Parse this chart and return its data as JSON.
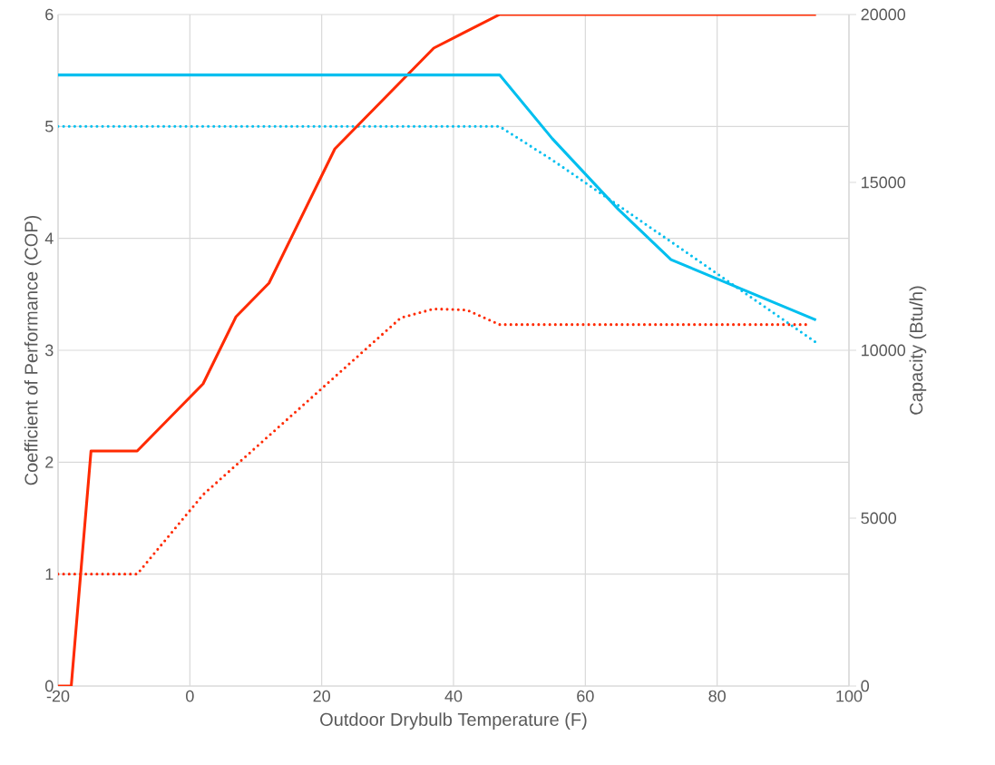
{
  "chart_data": {
    "type": "line",
    "xlabel": "Outdoor Drybulb Temperature (F)",
    "ylabel": "Coefficient of Performance (COP)",
    "y2label": "Capacity (Btu/h)",
    "xlim": [
      -20,
      100
    ],
    "xticks": [
      -20,
      0,
      20,
      40,
      60,
      80,
      100
    ],
    "ylim": [
      0,
      6
    ],
    "yticks": [
      0,
      1,
      2,
      3,
      4,
      5,
      6
    ],
    "y2lim": [
      0,
      20000
    ],
    "y2ticks": [
      0,
      5000,
      10000,
      15000,
      20000
    ],
    "grid": true,
    "marker": "none",
    "series": [
      {
        "color": "#ff2a00",
        "axis": "y2",
        "line_style": "solid",
        "x": [
          -20,
          -18,
          -15,
          -8,
          2,
          7,
          12,
          22,
          37,
          47,
          95
        ],
        "values": [
          0,
          0,
          7000,
          7000,
          9000,
          11000,
          12000,
          16000,
          19000,
          20000,
          20000
        ]
      },
      {
        "color": "#ff2a00",
        "axis": "y",
        "line_style": "dotted",
        "x": [
          -20,
          -8,
          2,
          32,
          37,
          42,
          47,
          94
        ],
        "values": [
          1.0,
          1.0,
          1.71,
          3.29,
          3.37,
          3.36,
          3.23,
          3.23
        ]
      },
      {
        "color": "#00bfef",
        "axis": "y2",
        "line_style": "solid",
        "x": [
          -20,
          47,
          55,
          65,
          73,
          95
        ],
        "values": [
          18200,
          18200,
          16300,
          14200,
          12700,
          10900
        ]
      },
      {
        "color": "#00bfef",
        "axis": "y",
        "line_style": "dotted",
        "x": [
          -20,
          47,
          55,
          73,
          95
        ],
        "values": [
          5.0,
          5.0,
          4.7,
          3.97,
          3.07
        ]
      }
    ]
  }
}
